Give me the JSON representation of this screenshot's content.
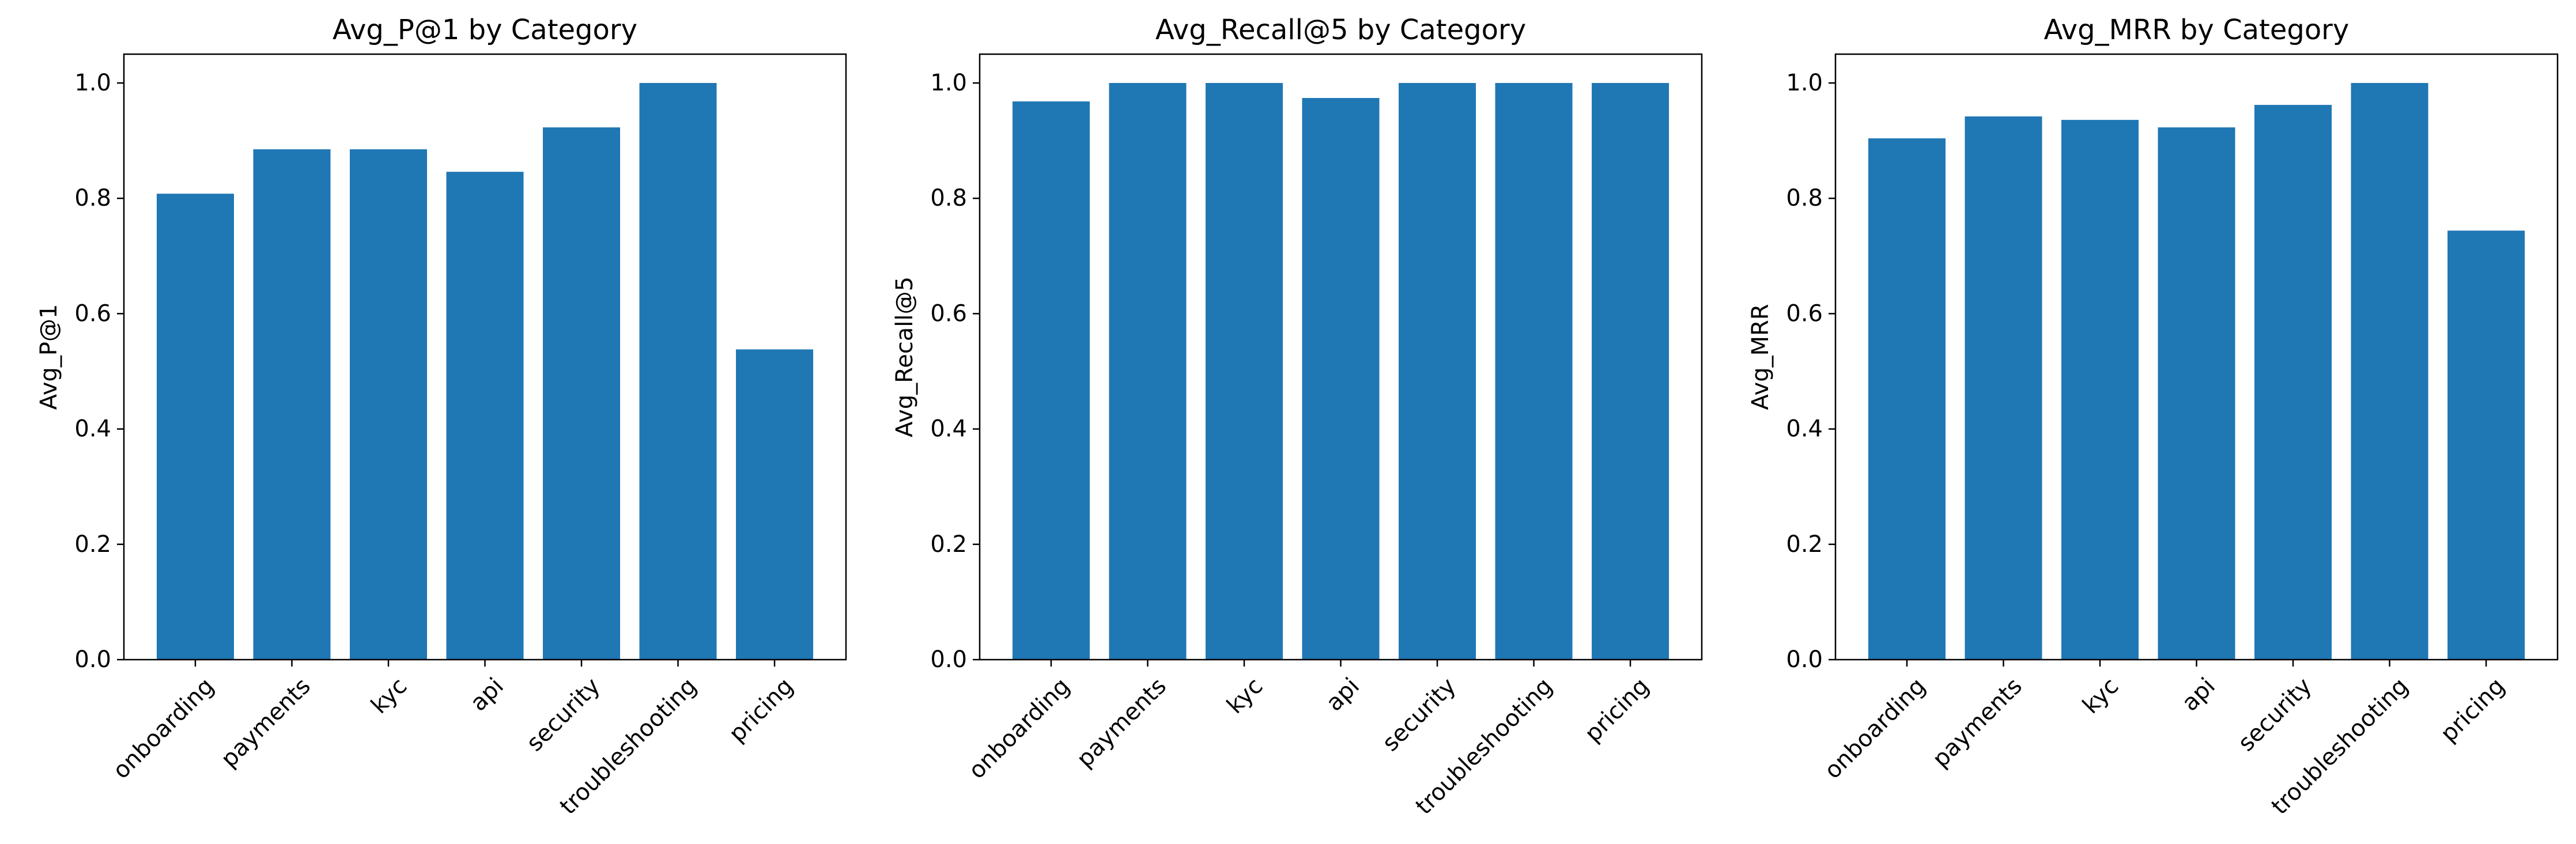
{
  "chart_data": [
    {
      "type": "bar",
      "title": "Avg_P@1 by Category",
      "xlabel": "",
      "ylabel": "Avg_P@1",
      "categories": [
        "onboarding",
        "payments",
        "kyc",
        "api",
        "security",
        "troubleshooting",
        "pricing"
      ],
      "values": [
        0.808,
        0.885,
        0.885,
        0.846,
        0.923,
        1.0,
        0.538
      ],
      "ylim": [
        0,
        1.05
      ],
      "yticks": [
        "0.0",
        "0.2",
        "0.4",
        "0.6",
        "0.8",
        "1.0"
      ],
      "bar_color": "#1f77b4",
      "grid": false,
      "legend": "none"
    },
    {
      "type": "bar",
      "title": "Avg_Recall@5 by Category",
      "xlabel": "",
      "ylabel": "Avg_Recall@5",
      "categories": [
        "onboarding",
        "payments",
        "kyc",
        "api",
        "security",
        "troubleshooting",
        "pricing"
      ],
      "values": [
        0.968,
        1.0,
        1.0,
        0.974,
        1.0,
        1.0,
        1.0
      ],
      "ylim": [
        0,
        1.05
      ],
      "yticks": [
        "0.0",
        "0.2",
        "0.4",
        "0.6",
        "0.8",
        "1.0"
      ],
      "bar_color": "#1f77b4",
      "grid": false,
      "legend": "none"
    },
    {
      "type": "bar",
      "title": "Avg_MRR by Category",
      "xlabel": "",
      "ylabel": "Avg_MRR",
      "categories": [
        "onboarding",
        "payments",
        "kyc",
        "api",
        "security",
        "troubleshooting",
        "pricing"
      ],
      "values": [
        0.904,
        0.942,
        0.936,
        0.923,
        0.962,
        1.0,
        0.744
      ],
      "ylim": [
        0,
        1.05
      ],
      "yticks": [
        "0.0",
        "0.2",
        "0.4",
        "0.6",
        "0.8",
        "1.0"
      ],
      "bar_color": "#1f77b4",
      "grid": false,
      "legend": "none"
    }
  ]
}
